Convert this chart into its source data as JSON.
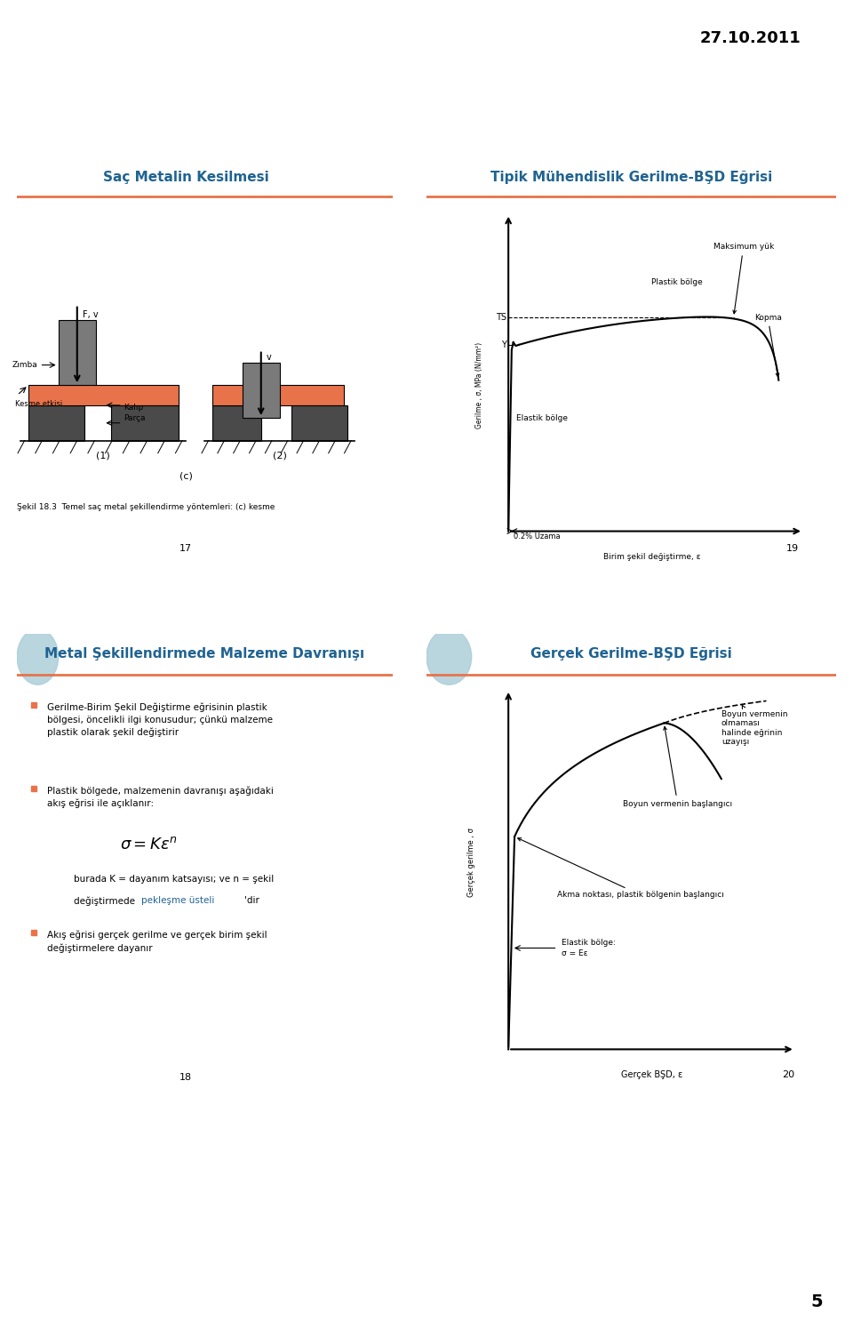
{
  "date_text": "27.10.2011",
  "page_number": "5",
  "bg_color": "#ffffff",
  "slide1_title": "Saç Metalin Kesilmesi",
  "slide2_title": "Tipik Mühendislik Gerilme-BŞD Eğrisi",
  "slide3_title": "Metal Şekillendirmede Malzeme Davranışı",
  "slide4_title": "Gerçek Gerilme-BŞD Eğrisi",
  "title_color": "#1f6391",
  "title_fontsize": 11,
  "line_color": "#e8734a",
  "slide3_bullet1": "Gerilme-Birim Şekil Değiştirme eğrisinin plastik\nbölgesi, öncelikli ilgi konusudur; çünkü malzeme\nplastik olarak şekil değiştirir",
  "slide3_bullet2": "Plastik bölgede, malzemenin davranışı aşağıdaki\nakış eğrisi ile açıklanır:",
  "slide3_formula": "$\\sigma = K\\varepsilon^n$",
  "slide3_burada1": "burada K = dayanım katsayısı; ve n = şekil",
  "slide3_burada2": "değiştirmede ",
  "slide3_peklesme": "pekleşme üsteli",
  "slide3_dir": "'dir",
  "slide3_bullet3": "Akış eğrisi gerçek gerilme ve gerçek birim şekil\ndeğiştirmelere dayanır",
  "peklesme_color": "#1f6391",
  "slide2_TS": "TS",
  "slide2_Y": "Y",
  "slide2_Maks_yuk": "Maksimum yük",
  "slide2_Kopma": "Kopma",
  "slide2_Plastik_bolge": "Plastik bölge",
  "slide2_Elastik_bolge": "Elastik bölge",
  "slide2_uzama_02": "0.2% Uzama",
  "slide2_x_label": "Birim şekil değiştirme, ε",
  "slide2_y_label": "Gerilme , σ, MPa (N/mm²)",
  "slide4_boyun_olmaması": "Boyun vermenin\nolmaması\nhalinde eğrinin\nuzayışı",
  "slide4_boyun_baslangic": "Boyun vermenin başlangıcı",
  "slide4_akma_nokt": "Akma noktası, plastik bölgenin başlangıcı",
  "slide4_elastik_bolge": "Elastik bölge:\nσ = Eε",
  "slide4_x_label": "Gerçek BŞD, ε",
  "slide4_y_label": "Gerçek gerilme , σ",
  "page17": "17",
  "page18": "18",
  "page19": "19",
  "page20": "20",
  "gear_color": "#a8ccd8",
  "dark_gray": "#4a4a4a",
  "medium_gray": "#7a7a7a",
  "orange_color": "#e8734a",
  "light_gray": "#d0d0d0",
  "slide1_caption": "Şekil 18.3  Temel saç metal şekillendirme yöntemleri: (c) kesme",
  "slide1_Zimba": "Zımba",
  "slide1_Kesme": "Kesme etkisi",
  "slide1_Parca": "Parça",
  "slide1_Kalip": "Kalıp",
  "slide1_Fv": "F, v",
  "slide1_v": "v"
}
